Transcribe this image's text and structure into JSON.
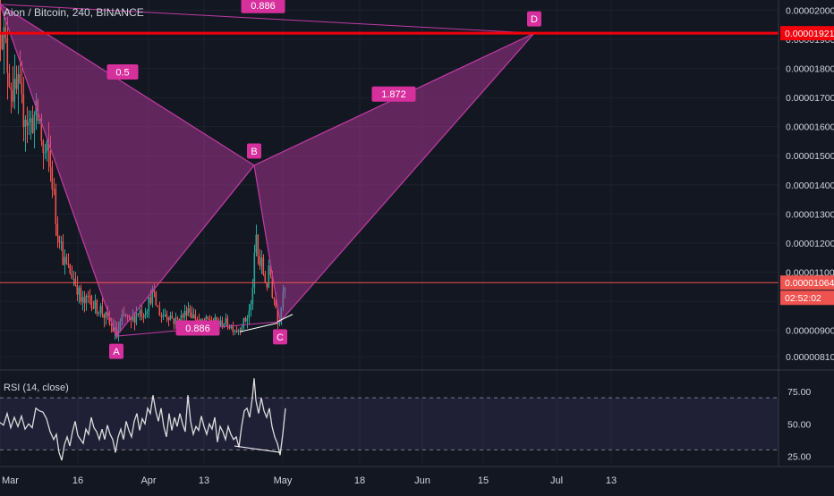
{
  "title": "Aion / Bitcoin, 240, BINANCE",
  "chart_data": [
    {
      "type": "candlestick",
      "title": "Aion / Bitcoin, 240, BINANCE",
      "ylim": [
        7.7e-06,
        2.035e-05
      ],
      "x_ticks": [
        "Mar",
        "16",
        "Apr",
        "13",
        "May",
        "18",
        "Jun",
        "15",
        "Jul",
        "13"
      ],
      "y_ticks": [
        "0.00002000",
        "0.00001900",
        "0.00001800",
        "0.00001700",
        "0.00001600",
        "0.00001500",
        "0.00001400",
        "0.00001300",
        "0.00001200",
        "0.00001100",
        "0.00001000",
        "0.00000900",
        "0.00000810"
      ],
      "grid": true,
      "resistance_label": "0.00001921",
      "last_price_label": "0.00001064",
      "countdown": "02:52:02",
      "resistance_color": "#f2000c",
      "last_price_color": "#ef5350",
      "up_color": "#26a69a",
      "down_color": "#ef5350",
      "close_path": [
        [
          0,
          1.98e-05
        ],
        [
          4,
          1.9e-05
        ],
        [
          8,
          1.82e-05
        ],
        [
          12,
          1.76e-05
        ],
        [
          16,
          1.7e-05
        ],
        [
          20,
          1.72e-05
        ],
        [
          24,
          1.65e-05
        ],
        [
          28,
          1.66e-05
        ],
        [
          32,
          1.6e-05
        ],
        [
          36,
          1.63e-05
        ],
        [
          40,
          1.63e-05
        ],
        [
          44,
          1.62e-05
        ],
        [
          48,
          1.5e-05
        ],
        [
          54,
          1.5e-05
        ],
        [
          58,
          1.42e-05
        ],
        [
          62,
          1.28e-05
        ],
        [
          66,
          1.24e-05
        ],
        [
          70,
          1.15e-05
        ],
        [
          74,
          1.12e-05
        ],
        [
          78,
          1.1e-05
        ],
        [
          82,
          1.08e-05
        ],
        [
          86,
          1.05e-05
        ],
        [
          90,
          1e-05
        ],
        [
          95,
          9.9e-06
        ],
        [
          100,
          1.02e-05
        ],
        [
          105,
          9.8e-06
        ],
        [
          110,
          9.8e-06
        ],
        [
          115,
          9.6e-06
        ],
        [
          120,
          9.3e-06
        ],
        [
          125,
          9.1e-06
        ],
        [
          130,
          8.8e-06
        ],
        [
          135,
          9.3e-06
        ],
        [
          140,
          9.5e-06
        ],
        [
          145,
          9.2e-06
        ],
        [
          150,
          9.5e-06
        ],
        [
          155,
          9.7e-06
        ],
        [
          160,
          9.6e-06
        ],
        [
          165,
          9.9e-06
        ],
        [
          170,
          1.03e-05
        ],
        [
          175,
          9.8e-06
        ],
        [
          180,
          9.5e-06
        ],
        [
          185,
          9.6e-06
        ],
        [
          190,
          9.5e-06
        ],
        [
          195,
          9.3e-06
        ],
        [
          200,
          9.4e-06
        ],
        [
          205,
          9.5e-06
        ],
        [
          210,
          9.8e-06
        ],
        [
          215,
          9.5e-06
        ],
        [
          220,
          9.4e-06
        ],
        [
          225,
          9.2e-06
        ],
        [
          230,
          9.3e-06
        ],
        [
          235,
          9.4e-06
        ],
        [
          240,
          9.3e-06
        ],
        [
          245,
          9.2e-06
        ],
        [
          250,
          9.3e-06
        ],
        [
          255,
          9.2e-06
        ],
        [
          260,
          9.1e-06
        ],
        [
          265,
          9e-06
        ],
        [
          270,
          9.2e-06
        ],
        [
          275,
          9.4e-06
        ],
        [
          280,
          9.8e-06
        ],
        [
          283,
          1.1e-05
        ],
        [
          286,
          1.22e-05
        ],
        [
          289,
          1.12e-05
        ],
        [
          292,
          1.13e-05
        ],
        [
          295,
          1.08e-05
        ],
        [
          298,
          1.06e-05
        ],
        [
          301,
          1.12e-05
        ],
        [
          304,
          1.03e-05
        ],
        [
          307,
          1e-05
        ],
        [
          310,
          9.4e-06
        ],
        [
          313,
          9.5e-06
        ],
        [
          316,
          1.05e-05
        ],
        [
          318,
          1.06e-05
        ]
      ],
      "volatility": [
        [
          0,
          1.6e-06
        ],
        [
          60,
          1.2e-06
        ],
        [
          70,
          6e-07
        ],
        [
          270,
          3e-07
        ],
        [
          285,
          6e-07
        ],
        [
          318,
          4e-07
        ]
      ],
      "harmonic_pattern": {
        "points": [
          {
            "name": "X",
            "label": "",
            "x": 0,
            "y": 2.02e-05
          },
          {
            "name": "A",
            "label": "A",
            "x": 130,
            "y": 8.8e-06
          },
          {
            "name": "B",
            "label": "B",
            "x": 284,
            "y": 1.467e-05
          },
          {
            "name": "C",
            "label": "C",
            "x": 313,
            "y": 9.3e-06
          },
          {
            "name": "D",
            "label": "D",
            "x": 597,
            "y": 1.921e-05
          }
        ],
        "ratios": [
          {
            "label": "0.886",
            "x": 294,
            "y": 2.016e-05
          },
          {
            "label": "0.5",
            "x": 137,
            "y": 1.788e-05
          },
          {
            "label": "1.872",
            "x": 440,
            "y": 1.712e-05
          },
          {
            "label": "0.886",
            "x": 221,
            "y": 9.08e-06
          }
        ],
        "fill_color": "#c13ba4",
        "label_color": "#d6309c"
      },
      "trendlines": [
        {
          "x1": 268,
          "y1": 8.95e-06,
          "x2": 310,
          "y2": 9.25e-06
        },
        {
          "x1": 310,
          "y1": 9.3e-06,
          "x2": 327,
          "y2": 9.55e-06
        }
      ]
    },
    {
      "type": "line",
      "title": "RSI (14, close)",
      "ylim": [
        20,
        90
      ],
      "y_ticks": [
        "75.00",
        "50.00",
        "25.00"
      ],
      "band": [
        30,
        70
      ],
      "band_color": "#7e57c2",
      "line_color": "#dcdcdc",
      "series": [
        {
          "values": [
            [
              0,
              51
            ],
            [
              4,
              49
            ],
            [
              8,
              58
            ],
            [
              12,
              47
            ],
            [
              16,
              55
            ],
            [
              20,
              48
            ],
            [
              24,
              56
            ],
            [
              28,
              46
            ],
            [
              32,
              50
            ],
            [
              36,
              47
            ],
            [
              40,
              62
            ],
            [
              44,
              60
            ],
            [
              48,
              59
            ],
            [
              52,
              54
            ],
            [
              56,
              44
            ],
            [
              60,
              38
            ],
            [
              63,
              42
            ],
            [
              66,
              28
            ],
            [
              69,
              22
            ],
            [
              72,
              34
            ],
            [
              75,
              40
            ],
            [
              78,
              33
            ],
            [
              81,
              44
            ],
            [
              84,
              52
            ],
            [
              87,
              41
            ],
            [
              90,
              38
            ],
            [
              93,
              35
            ],
            [
              96,
              46
            ],
            [
              99,
              42
            ],
            [
              102,
              55
            ],
            [
              105,
              47
            ],
            [
              108,
              44
            ],
            [
              111,
              38
            ],
            [
              114,
              46
            ],
            [
              117,
              38
            ],
            [
              120,
              49
            ],
            [
              123,
              42
            ],
            [
              126,
              38
            ],
            [
              129,
              28
            ],
            [
              132,
              40
            ],
            [
              135,
              46
            ],
            [
              138,
              38
            ],
            [
              141,
              52
            ],
            [
              144,
              45
            ],
            [
              147,
              40
            ],
            [
              150,
              52
            ],
            [
              153,
              58
            ],
            [
              156,
              45
            ],
            [
              159,
              54
            ],
            [
              162,
              50
            ],
            [
              165,
              62
            ],
            [
              168,
              58
            ],
            [
              171,
              72
            ],
            [
              174,
              60
            ],
            [
              177,
              52
            ],
            [
              180,
              62
            ],
            [
              183,
              48
            ],
            [
              186,
              40
            ],
            [
              189,
              58
            ],
            [
              192,
              45
            ],
            [
              195,
              55
            ],
            [
              198,
              48
            ],
            [
              201,
              58
            ],
            [
              204,
              50
            ],
            [
              207,
              44
            ],
            [
              210,
              72
            ],
            [
              213,
              52
            ],
            [
              216,
              42
            ],
            [
              219,
              48
            ],
            [
              222,
              45
            ],
            [
              225,
              56
            ],
            [
              228,
              48
            ],
            [
              231,
              42
            ],
            [
              234,
              50
            ],
            [
              237,
              46
            ],
            [
              240,
              55
            ],
            [
              243,
              36
            ],
            [
              246,
              48
            ],
            [
              249,
              44
            ],
            [
              252,
              38
            ],
            [
              255,
              48
            ],
            [
              258,
              42
            ],
            [
              261,
              38
            ],
            [
              264,
              40
            ],
            [
              267,
              32
            ],
            [
              270,
              48
            ],
            [
              273,
              60
            ],
            [
              276,
              62
            ],
            [
              279,
              55
            ],
            [
              282,
              70
            ],
            [
              284,
              85
            ],
            [
              286,
              68
            ],
            [
              289,
              58
            ],
            [
              292,
              70
            ],
            [
              295,
              60
            ],
            [
              298,
              55
            ],
            [
              301,
              62
            ],
            [
              304,
              48
            ],
            [
              307,
              40
            ],
            [
              310,
              35
            ],
            [
              313,
              26
            ],
            [
              316,
              42
            ],
            [
              319,
              62
            ]
          ]
        }
      ],
      "divergence_line": {
        "x1": 262,
        "y1": 33,
        "x2": 314,
        "y2": 28
      }
    }
  ]
}
